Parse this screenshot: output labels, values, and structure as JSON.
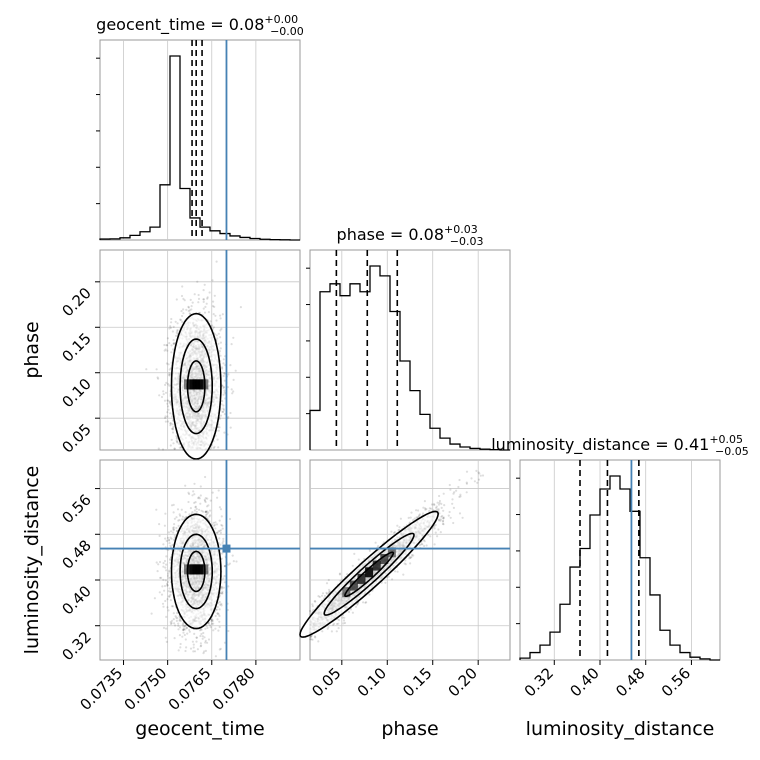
{
  "chart_data": {
    "type": "corner",
    "truth_color": "#4682b4",
    "grid": true,
    "params": [
      {
        "name": "geocent_time",
        "title": "geocent_time = 0.08",
        "sup": "+0.00",
        "sub": "−0.00",
        "range": [
          0.0727,
          0.0795
        ],
        "ticks": [
          0.0735,
          0.075,
          0.0765,
          0.078
        ],
        "tick_labels": [
          "0.0735",
          "0.0750",
          "0.0765",
          "0.0780"
        ],
        "quantiles": [
          0.07583,
          0.07597,
          0.07617
        ],
        "truth": 0.077,
        "hist_edges": [
          0.0727,
          0.07304,
          0.07338,
          0.07372,
          0.07406,
          0.0744,
          0.07474,
          0.07508,
          0.07542,
          0.07576,
          0.0761,
          0.07644,
          0.07678,
          0.07712,
          0.07746,
          0.0778,
          0.07814,
          0.07848,
          0.07882,
          0.07916,
          0.0795
        ],
        "hist_counts": [
          0.005,
          0.006,
          0.012,
          0.025,
          0.045,
          0.07,
          0.3,
          1.0,
          0.28,
          0.12,
          0.07,
          0.05,
          0.035,
          0.022,
          0.014,
          0.008,
          0.004,
          0.002,
          0.001,
          0.0
        ]
      },
      {
        "name": "phase",
        "title": "phase = 0.08",
        "sup": "+0.03",
        "sub": "−0.03",
        "range": [
          0.015,
          0.235
        ],
        "ticks": [
          0.05,
          0.1,
          0.15,
          0.2
        ],
        "tick_labels": [
          "0.05",
          "0.10",
          "0.15",
          "0.20"
        ],
        "quantiles": [
          0.044,
          0.078,
          0.111
        ],
        "truth": null,
        "hist_edges": [
          0.015,
          0.026,
          0.037,
          0.048,
          0.059,
          0.07,
          0.081,
          0.092,
          0.103,
          0.114,
          0.125,
          0.136,
          0.147,
          0.158,
          0.169,
          0.18,
          0.191,
          0.202,
          0.213,
          0.224,
          0.235
        ],
        "hist_counts": [
          0.2,
          0.8,
          0.84,
          0.78,
          0.84,
          0.8,
          0.93,
          0.88,
          0.7,
          0.45,
          0.3,
          0.18,
          0.11,
          0.06,
          0.03,
          0.015,
          0.008,
          0.004,
          0.002,
          0.0
        ]
      },
      {
        "name": "luminosity_distance",
        "title": "luminosity_distance = 0.41",
        "sup": "+0.05",
        "sub": "−0.05",
        "range": [
          0.26,
          0.61
        ],
        "ticks": [
          0.32,
          0.4,
          0.48,
          0.56
        ],
        "tick_labels": [
          "0.32",
          "0.40",
          "0.48",
          "0.56"
        ],
        "quantiles": [
          0.365,
          0.413,
          0.468
        ],
        "truth": 0.455,
        "hist_edges": [
          0.26,
          0.2775,
          0.295,
          0.3125,
          0.33,
          0.3475,
          0.365,
          0.3825,
          0.4,
          0.4175,
          0.435,
          0.4525,
          0.47,
          0.4875,
          0.505,
          0.5225,
          0.54,
          0.5575,
          0.575,
          0.5925,
          0.61
        ],
        "hist_counts": [
          0.01,
          0.04,
          0.08,
          0.15,
          0.3,
          0.5,
          0.6,
          0.78,
          0.92,
          0.99,
          0.92,
          0.8,
          0.55,
          0.35,
          0.16,
          0.08,
          0.04,
          0.015,
          0.006,
          0.0
        ]
      }
    ],
    "pairs": [
      {
        "x": 0,
        "y": 1,
        "center": [
          0.07597,
          0.085
        ],
        "std": [
          0.00042,
          0.04
        ],
        "rho": 0.0,
        "truth": [
          0.077,
          null
        ]
      },
      {
        "x": 0,
        "y": 2,
        "center": [
          0.07597,
          0.415
        ],
        "std": [
          0.00042,
          0.05
        ],
        "rho": 0.0,
        "truth": [
          0.077,
          0.455
        ]
      },
      {
        "x": 1,
        "y": 2,
        "center": [
          0.08,
          0.41
        ],
        "std": [
          0.038,
          0.055
        ],
        "rho": 0.96,
        "truth": [
          null,
          0.455
        ]
      }
    ]
  }
}
